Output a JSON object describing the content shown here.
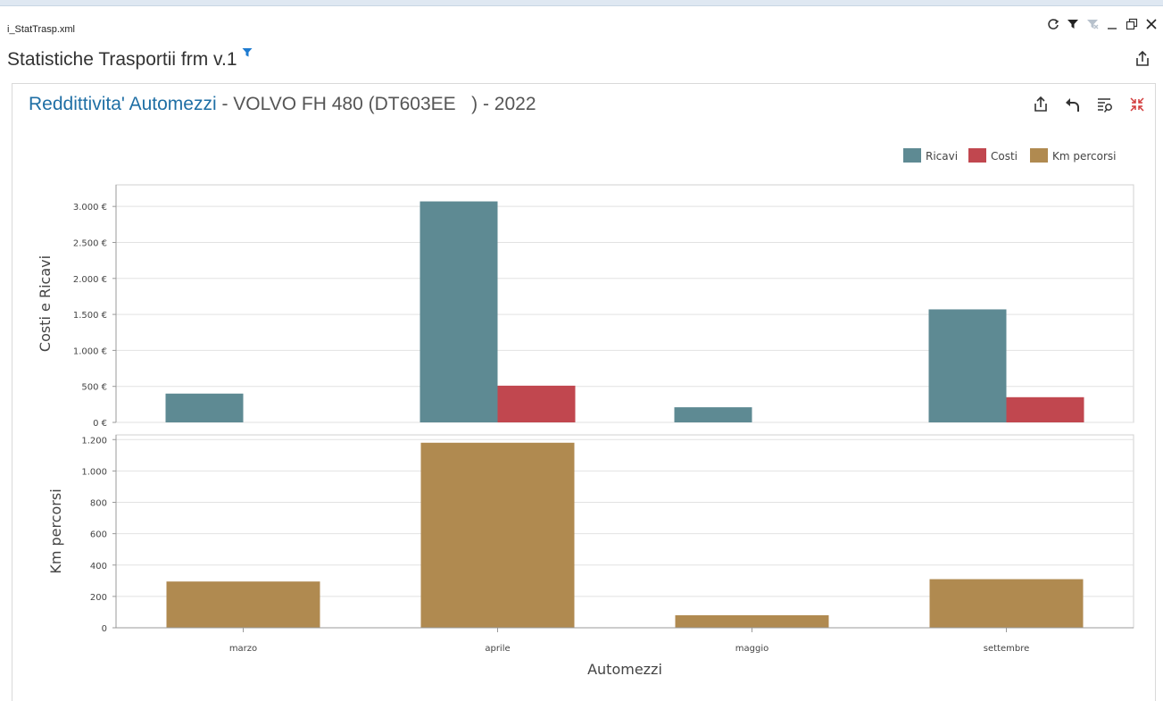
{
  "window": {
    "title": "i_StatTrasp.xml",
    "controls": [
      "refresh-icon",
      "filter-icon",
      "clear-filter-icon",
      "minimize-icon",
      "restore-icon",
      "close-icon"
    ]
  },
  "form": {
    "title": "Statistiche Trasportii frm v.1",
    "filter_icon": "filter-icon",
    "export_icon": "export-icon"
  },
  "dashboard": {
    "title_accent": "Reddittivita' Automezzi",
    "title_rest": " - VOLVO FH 480 (DT603EE   ) - 2022",
    "tools": [
      "export-icon",
      "undo-icon",
      "filter-list-icon",
      "collapse-icon"
    ]
  },
  "colors": {
    "ricavi": "#5e8a93",
    "costi": "#c1474f",
    "km": "#b08a50",
    "accent": "#1f6fa5"
  },
  "chart_data": [
    {
      "type": "bar",
      "categories": [
        "marzo",
        "aprile",
        "maggio",
        "settembre"
      ],
      "series": [
        {
          "name": "Ricavi",
          "values": [
            400,
            3070,
            210,
            1570
          ]
        },
        {
          "name": "Costi",
          "values": [
            0,
            510,
            0,
            350
          ]
        }
      ],
      "ylabel": "Costi e Ricavi",
      "ylim": [
        0,
        3300
      ],
      "yticks": [
        0,
        500,
        1000,
        1500,
        2000,
        2500,
        3000
      ],
      "ytick_labels": [
        "0 €",
        "500 €",
        "1.000 €",
        "1.500 €",
        "2.000 €",
        "2.500 €",
        "3.000 €"
      ],
      "grid": true
    },
    {
      "type": "bar",
      "categories": [
        "marzo",
        "aprile",
        "maggio",
        "settembre"
      ],
      "series": [
        {
          "name": "Km percorsi",
          "values": [
            295,
            1180,
            80,
            310
          ]
        }
      ],
      "ylabel": "Km percorsi",
      "xlabel": "Automezzi",
      "ylim": [
        0,
        1230
      ],
      "yticks": [
        0,
        200,
        400,
        600,
        800,
        1000,
        1200
      ],
      "ytick_labels": [
        "0",
        "200",
        "400",
        "600",
        "800",
        "1.000",
        "1.200"
      ],
      "grid": true
    }
  ],
  "legend": {
    "position": "top-right",
    "items": [
      "Ricavi",
      "Costi",
      "Km percorsi"
    ]
  }
}
